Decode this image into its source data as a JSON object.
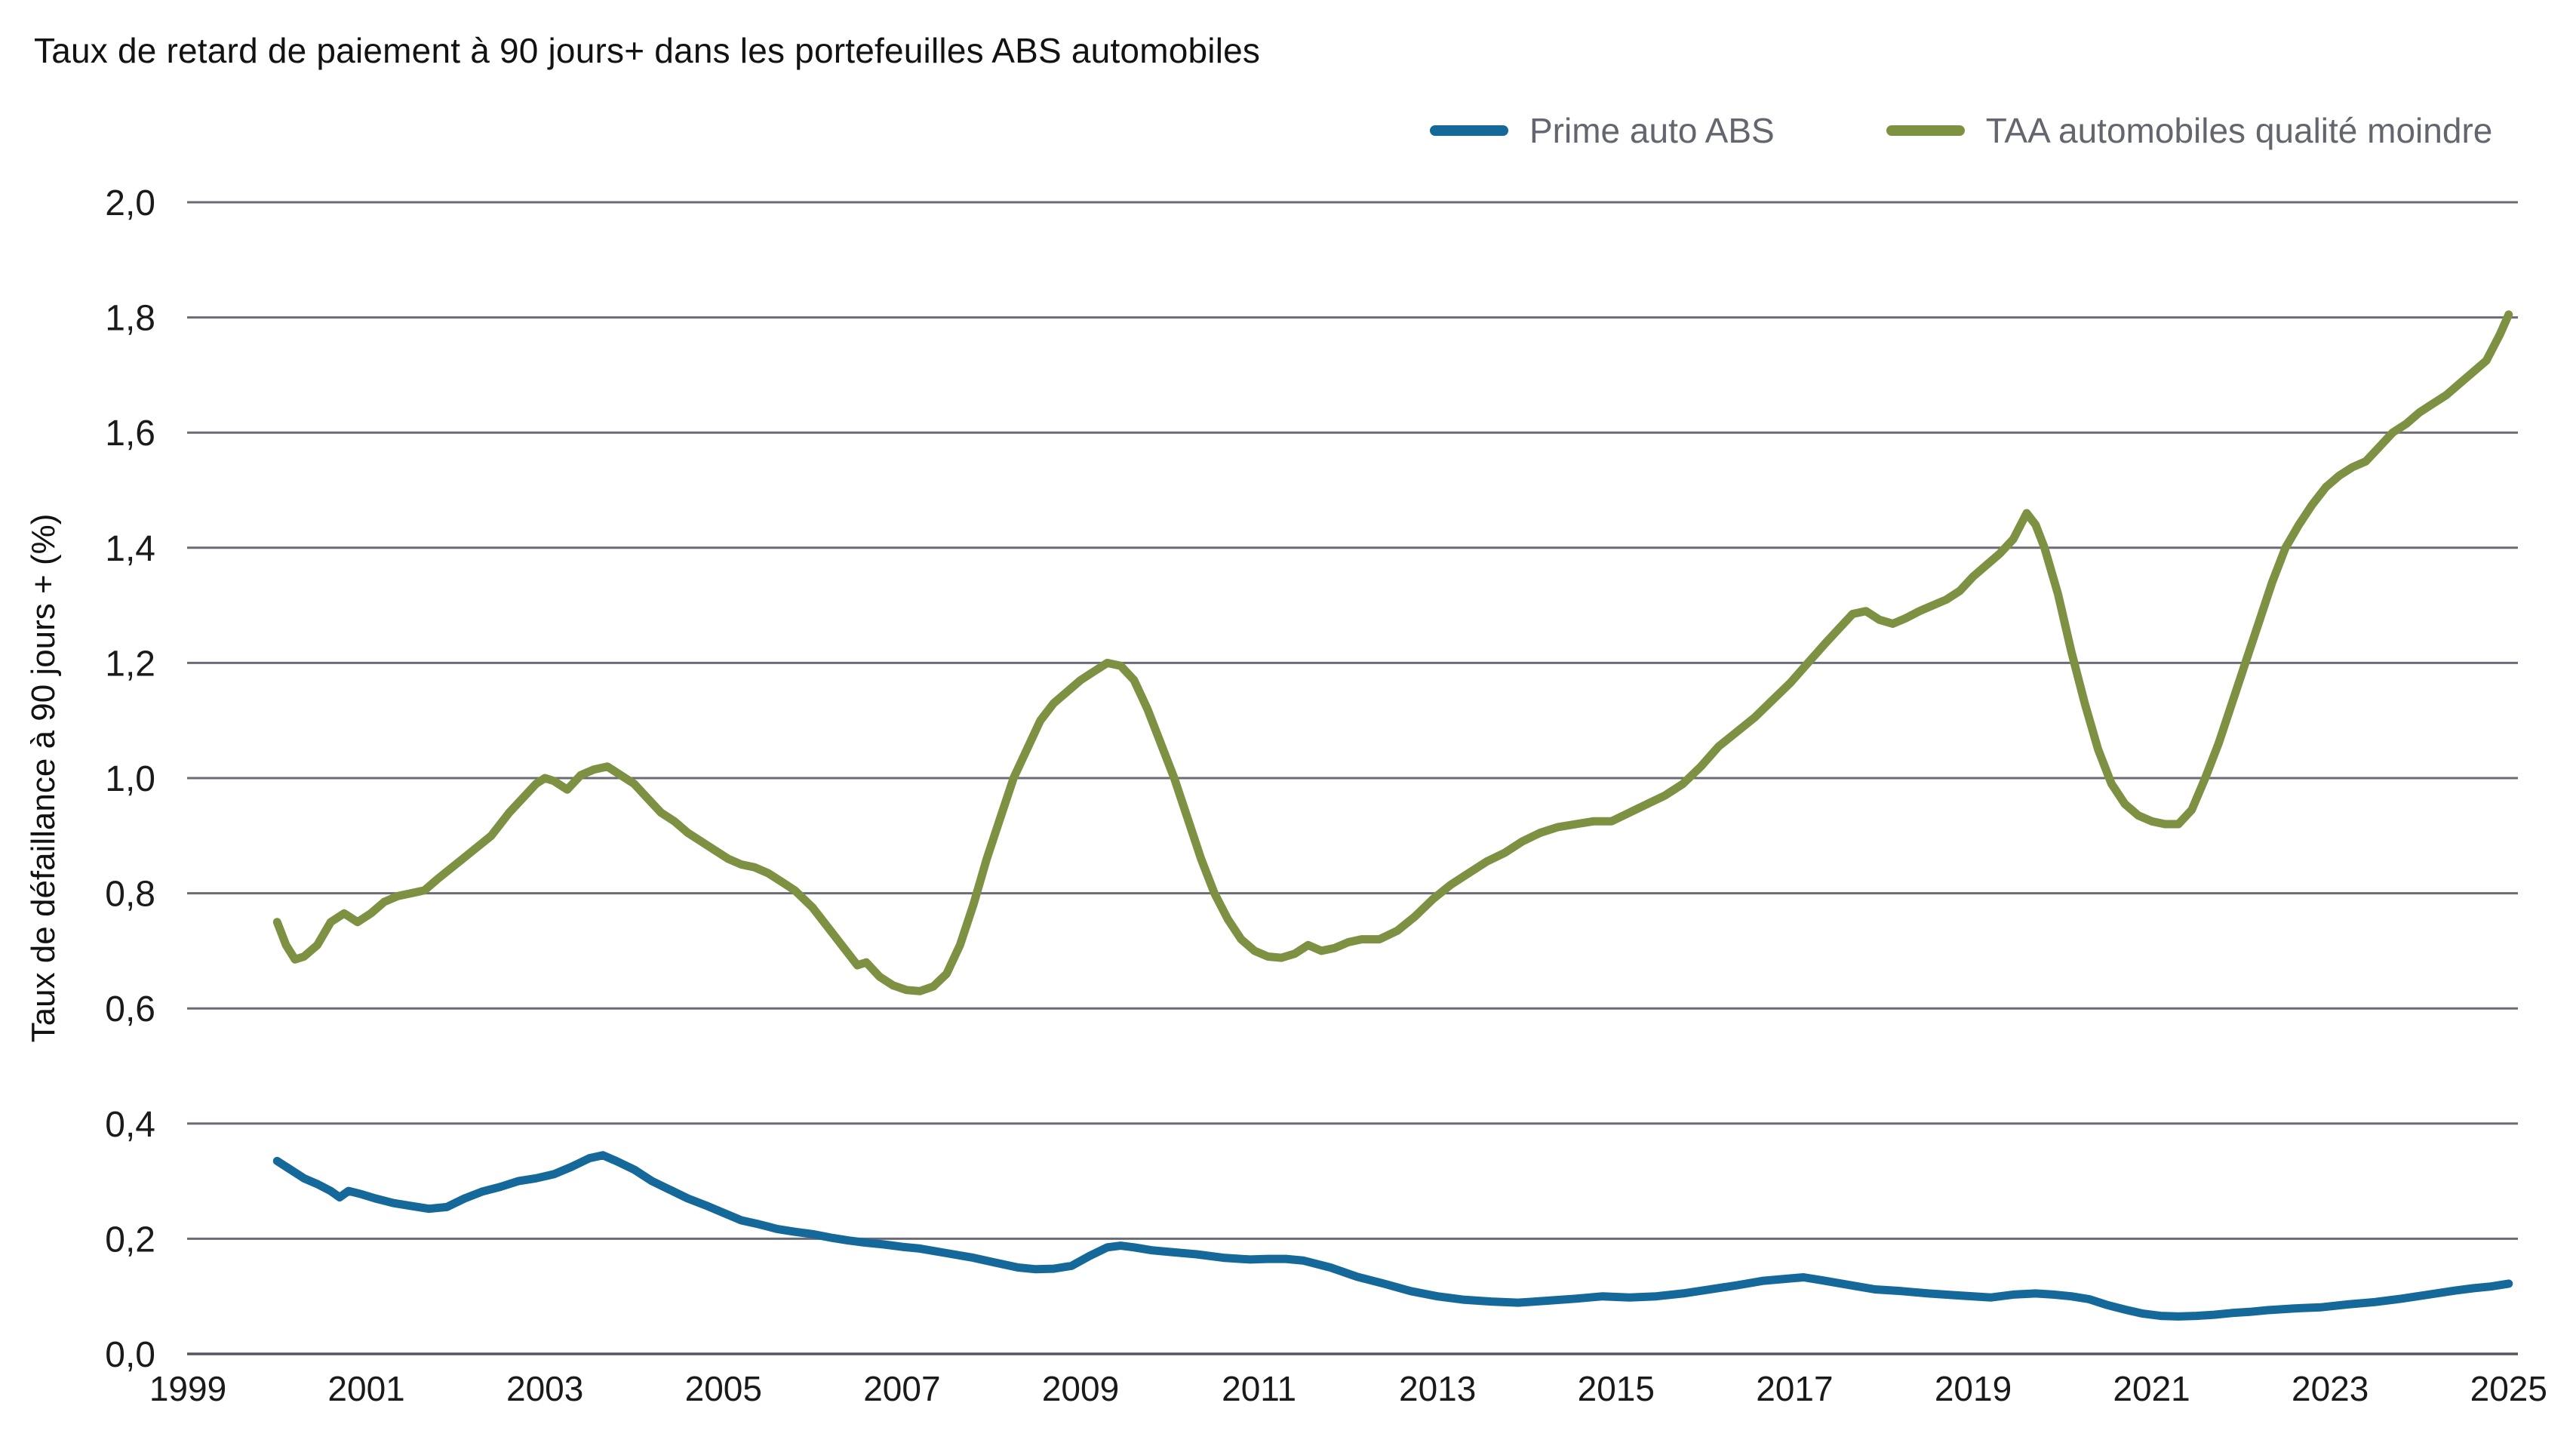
{
  "header": {
    "title": "Taux de retard de paiement à 90 jours+ dans les portefeuilles ABS automobiles"
  },
  "legend": [
    {
      "label": "Prime auto ABS",
      "color": "#15689a"
    },
    {
      "label": "TAA automobiles qualité moindre",
      "color": "#7e9143"
    }
  ],
  "colors": {
    "background": "#ffffff",
    "gridline": "#6b6b76",
    "axis": "#55555f",
    "tick_text": "#1a1a1a",
    "legend_text": "#63666e",
    "prime_blue": "#15689a",
    "taa_green": "#7e9143"
  },
  "chart_data": {
    "type": "line",
    "title": "Taux de retard de paiement à 90 jours+ dans les portefeuilles ABS automobiles",
    "xlabel": "",
    "ylabel": "Taux de défaillance à 90 jours + (%)",
    "xlim": [
      1999,
      2025.6
    ],
    "ylim": [
      0,
      2.0
    ],
    "grid": "horizontal",
    "legend_position": "top-right",
    "y_ticks": [
      {
        "value": 0.0,
        "label": "0,0"
      },
      {
        "value": 0.2,
        "label": "0,2"
      },
      {
        "value": 0.4,
        "label": "0,4"
      },
      {
        "value": 0.6,
        "label": "0,6"
      },
      {
        "value": 0.8,
        "label": "0,8"
      },
      {
        "value": 1.0,
        "label": "1,0"
      },
      {
        "value": 1.2,
        "label": "1,2"
      },
      {
        "value": 1.4,
        "label": "1,4"
      },
      {
        "value": 1.6,
        "label": "1,6"
      },
      {
        "value": 1.8,
        "label": "1,8"
      },
      {
        "value": 2.0,
        "label": "2,0"
      }
    ],
    "x_ticks": [
      1999,
      2001,
      2003,
      2005,
      2007,
      2009,
      2011,
      2013,
      2015,
      2017,
      2019,
      2021,
      2023,
      2025
    ],
    "series": [
      {
        "name": "Prime auto ABS",
        "color": "#15689a",
        "points": [
          [
            2000.0,
            0.335
          ],
          [
            2000.15,
            0.32
          ],
          [
            2000.3,
            0.305
          ],
          [
            2000.45,
            0.295
          ],
          [
            2000.6,
            0.283
          ],
          [
            2000.7,
            0.272
          ],
          [
            2000.8,
            0.283
          ],
          [
            2000.95,
            0.277
          ],
          [
            2001.1,
            0.27
          ],
          [
            2001.3,
            0.262
          ],
          [
            2001.5,
            0.257
          ],
          [
            2001.7,
            0.252
          ],
          [
            2001.9,
            0.255
          ],
          [
            2002.1,
            0.27
          ],
          [
            2002.3,
            0.282
          ],
          [
            2002.5,
            0.29
          ],
          [
            2002.7,
            0.3
          ],
          [
            2002.9,
            0.305
          ],
          [
            2003.1,
            0.312
          ],
          [
            2003.3,
            0.325
          ],
          [
            2003.5,
            0.34
          ],
          [
            2003.65,
            0.345
          ],
          [
            2003.8,
            0.335
          ],
          [
            2004.0,
            0.32
          ],
          [
            2004.2,
            0.3
          ],
          [
            2004.4,
            0.285
          ],
          [
            2004.6,
            0.27
          ],
          [
            2004.8,
            0.258
          ],
          [
            2005.0,
            0.245
          ],
          [
            2005.2,
            0.232
          ],
          [
            2005.4,
            0.225
          ],
          [
            2005.6,
            0.217
          ],
          [
            2005.8,
            0.212
          ],
          [
            2006.0,
            0.208
          ],
          [
            2006.2,
            0.202
          ],
          [
            2006.4,
            0.197
          ],
          [
            2006.6,
            0.193
          ],
          [
            2006.8,
            0.19
          ],
          [
            2007.0,
            0.186
          ],
          [
            2007.2,
            0.183
          ],
          [
            2007.5,
            0.175
          ],
          [
            2007.8,
            0.167
          ],
          [
            2008.0,
            0.16
          ],
          [
            2008.3,
            0.15
          ],
          [
            2008.5,
            0.147
          ],
          [
            2008.7,
            0.148
          ],
          [
            2008.9,
            0.153
          ],
          [
            2009.1,
            0.17
          ],
          [
            2009.3,
            0.185
          ],
          [
            2009.45,
            0.188
          ],
          [
            2009.6,
            0.185
          ],
          [
            2009.8,
            0.18
          ],
          [
            2010.0,
            0.177
          ],
          [
            2010.3,
            0.173
          ],
          [
            2010.6,
            0.167
          ],
          [
            2010.9,
            0.164
          ],
          [
            2011.1,
            0.165
          ],
          [
            2011.3,
            0.165
          ],
          [
            2011.5,
            0.162
          ],
          [
            2011.8,
            0.15
          ],
          [
            2012.1,
            0.134
          ],
          [
            2012.4,
            0.122
          ],
          [
            2012.7,
            0.109
          ],
          [
            2013.0,
            0.1
          ],
          [
            2013.3,
            0.094
          ],
          [
            2013.6,
            0.091
          ],
          [
            2013.9,
            0.089
          ],
          [
            2014.2,
            0.092
          ],
          [
            2014.55,
            0.096
          ],
          [
            2014.85,
            0.1
          ],
          [
            2015.15,
            0.098
          ],
          [
            2015.45,
            0.1
          ],
          [
            2015.75,
            0.105
          ],
          [
            2016.05,
            0.112
          ],
          [
            2016.35,
            0.119
          ],
          [
            2016.65,
            0.127
          ],
          [
            2016.95,
            0.131
          ],
          [
            2017.1,
            0.133
          ],
          [
            2017.3,
            0.128
          ],
          [
            2017.6,
            0.12
          ],
          [
            2017.9,
            0.112
          ],
          [
            2018.2,
            0.109
          ],
          [
            2018.5,
            0.105
          ],
          [
            2018.8,
            0.102
          ],
          [
            2019.0,
            0.1
          ],
          [
            2019.2,
            0.098
          ],
          [
            2019.45,
            0.103
          ],
          [
            2019.7,
            0.105
          ],
          [
            2019.9,
            0.103
          ],
          [
            2020.1,
            0.1
          ],
          [
            2020.3,
            0.095
          ],
          [
            2020.5,
            0.085
          ],
          [
            2020.7,
            0.077
          ],
          [
            2020.9,
            0.07
          ],
          [
            2021.1,
            0.066
          ],
          [
            2021.3,
            0.065
          ],
          [
            2021.5,
            0.066
          ],
          [
            2021.7,
            0.068
          ],
          [
            2021.9,
            0.071
          ],
          [
            2022.1,
            0.073
          ],
          [
            2022.3,
            0.076
          ],
          [
            2022.6,
            0.079
          ],
          [
            2022.9,
            0.081
          ],
          [
            2023.2,
            0.086
          ],
          [
            2023.5,
            0.09
          ],
          [
            2023.8,
            0.096
          ],
          [
            2024.1,
            0.103
          ],
          [
            2024.4,
            0.11
          ],
          [
            2024.6,
            0.114
          ],
          [
            2024.8,
            0.117
          ],
          [
            2025.0,
            0.122
          ]
        ]
      },
      {
        "name": "TAA automobiles qualité moindre",
        "color": "#7e9143",
        "points": [
          [
            2000.0,
            0.75
          ],
          [
            2000.1,
            0.71
          ],
          [
            2000.2,
            0.685
          ],
          [
            2000.3,
            0.69
          ],
          [
            2000.45,
            0.71
          ],
          [
            2000.6,
            0.75
          ],
          [
            2000.75,
            0.765
          ],
          [
            2000.9,
            0.75
          ],
          [
            2001.05,
            0.765
          ],
          [
            2001.2,
            0.785
          ],
          [
            2001.35,
            0.795
          ],
          [
            2001.5,
            0.8
          ],
          [
            2001.65,
            0.805
          ],
          [
            2001.8,
            0.825
          ],
          [
            2002.0,
            0.85
          ],
          [
            2002.2,
            0.875
          ],
          [
            2002.4,
            0.9
          ],
          [
            2002.6,
            0.94
          ],
          [
            2002.75,
            0.965
          ],
          [
            2002.9,
            0.99
          ],
          [
            2003.0,
            1.0
          ],
          [
            2003.1,
            0.995
          ],
          [
            2003.25,
            0.98
          ],
          [
            2003.4,
            1.005
          ],
          [
            2003.55,
            1.015
          ],
          [
            2003.7,
            1.02
          ],
          [
            2003.85,
            1.005
          ],
          [
            2004.0,
            0.99
          ],
          [
            2004.15,
            0.965
          ],
          [
            2004.3,
            0.94
          ],
          [
            2004.45,
            0.925
          ],
          [
            2004.6,
            0.905
          ],
          [
            2004.75,
            0.89
          ],
          [
            2004.9,
            0.875
          ],
          [
            2005.05,
            0.86
          ],
          [
            2005.2,
            0.85
          ],
          [
            2005.35,
            0.845
          ],
          [
            2005.5,
            0.835
          ],
          [
            2005.65,
            0.82
          ],
          [
            2005.8,
            0.805
          ],
          [
            2006.0,
            0.775
          ],
          [
            2006.2,
            0.735
          ],
          [
            2006.35,
            0.705
          ],
          [
            2006.5,
            0.675
          ],
          [
            2006.6,
            0.68
          ],
          [
            2006.75,
            0.655
          ],
          [
            2006.9,
            0.64
          ],
          [
            2007.05,
            0.632
          ],
          [
            2007.2,
            0.63
          ],
          [
            2007.35,
            0.638
          ],
          [
            2007.5,
            0.66
          ],
          [
            2007.65,
            0.71
          ],
          [
            2007.8,
            0.78
          ],
          [
            2007.95,
            0.86
          ],
          [
            2008.1,
            0.93
          ],
          [
            2008.25,
            1.0
          ],
          [
            2008.4,
            1.05
          ],
          [
            2008.55,
            1.1
          ],
          [
            2008.7,
            1.13
          ],
          [
            2008.85,
            1.15
          ],
          [
            2009.0,
            1.17
          ],
          [
            2009.15,
            1.185
          ],
          [
            2009.3,
            1.2
          ],
          [
            2009.45,
            1.195
          ],
          [
            2009.6,
            1.17
          ],
          [
            2009.75,
            1.12
          ],
          [
            2009.9,
            1.06
          ],
          [
            2010.05,
            1.0
          ],
          [
            2010.2,
            0.93
          ],
          [
            2010.35,
            0.86
          ],
          [
            2010.5,
            0.8
          ],
          [
            2010.65,
            0.755
          ],
          [
            2010.8,
            0.72
          ],
          [
            2010.95,
            0.7
          ],
          [
            2011.1,
            0.69
          ],
          [
            2011.25,
            0.688
          ],
          [
            2011.4,
            0.695
          ],
          [
            2011.55,
            0.71
          ],
          [
            2011.7,
            0.7
          ],
          [
            2011.85,
            0.705
          ],
          [
            2012.0,
            0.715
          ],
          [
            2012.15,
            0.72
          ],
          [
            2012.35,
            0.72
          ],
          [
            2012.55,
            0.735
          ],
          [
            2012.75,
            0.76
          ],
          [
            2012.95,
            0.79
          ],
          [
            2013.15,
            0.815
          ],
          [
            2013.35,
            0.835
          ],
          [
            2013.55,
            0.855
          ],
          [
            2013.75,
            0.87
          ],
          [
            2013.95,
            0.89
          ],
          [
            2014.15,
            0.905
          ],
          [
            2014.35,
            0.915
          ],
          [
            2014.55,
            0.92
          ],
          [
            2014.75,
            0.925
          ],
          [
            2014.95,
            0.925
          ],
          [
            2015.15,
            0.94
          ],
          [
            2015.35,
            0.955
          ],
          [
            2015.55,
            0.97
          ],
          [
            2015.75,
            0.99
          ],
          [
            2015.95,
            1.02
          ],
          [
            2016.15,
            1.055
          ],
          [
            2016.35,
            1.08
          ],
          [
            2016.55,
            1.105
          ],
          [
            2016.75,
            1.135
          ],
          [
            2016.95,
            1.165
          ],
          [
            2017.15,
            1.2
          ],
          [
            2017.35,
            1.235
          ],
          [
            2017.5,
            1.26
          ],
          [
            2017.65,
            1.285
          ],
          [
            2017.8,
            1.29
          ],
          [
            2017.95,
            1.275
          ],
          [
            2018.1,
            1.268
          ],
          [
            2018.25,
            1.278
          ],
          [
            2018.4,
            1.29
          ],
          [
            2018.55,
            1.3
          ],
          [
            2018.7,
            1.31
          ],
          [
            2018.85,
            1.325
          ],
          [
            2019.0,
            1.35
          ],
          [
            2019.15,
            1.37
          ],
          [
            2019.3,
            1.39
          ],
          [
            2019.45,
            1.415
          ],
          [
            2019.6,
            1.46
          ],
          [
            2019.7,
            1.44
          ],
          [
            2019.8,
            1.4
          ],
          [
            2019.95,
            1.32
          ],
          [
            2020.1,
            1.22
          ],
          [
            2020.25,
            1.13
          ],
          [
            2020.4,
            1.05
          ],
          [
            2020.55,
            0.99
          ],
          [
            2020.7,
            0.955
          ],
          [
            2020.85,
            0.935
          ],
          [
            2021.0,
            0.925
          ],
          [
            2021.15,
            0.92
          ],
          [
            2021.3,
            0.92
          ],
          [
            2021.45,
            0.945
          ],
          [
            2021.6,
            1.0
          ],
          [
            2021.75,
            1.06
          ],
          [
            2021.9,
            1.13
          ],
          [
            2022.05,
            1.2
          ],
          [
            2022.2,
            1.27
          ],
          [
            2022.35,
            1.34
          ],
          [
            2022.5,
            1.4
          ],
          [
            2022.65,
            1.44
          ],
          [
            2022.8,
            1.475
          ],
          [
            2022.95,
            1.505
          ],
          [
            2023.1,
            1.525
          ],
          [
            2023.25,
            1.54
          ],
          [
            2023.4,
            1.55
          ],
          [
            2023.55,
            1.575
          ],
          [
            2023.7,
            1.6
          ],
          [
            2023.85,
            1.615
          ],
          [
            2024.0,
            1.635
          ],
          [
            2024.15,
            1.65
          ],
          [
            2024.3,
            1.665
          ],
          [
            2024.45,
            1.685
          ],
          [
            2024.6,
            1.705
          ],
          [
            2024.75,
            1.725
          ],
          [
            2024.9,
            1.77
          ],
          [
            2025.0,
            1.805
          ]
        ]
      }
    ]
  }
}
